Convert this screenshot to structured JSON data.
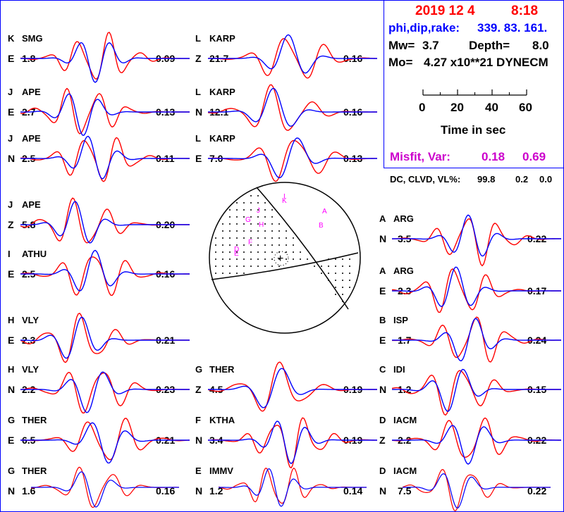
{
  "colors": {
    "observed": "#ff0000",
    "synthetic": "#0000ff",
    "frame": "#0000ff",
    "polarity": "#ff00ff"
  },
  "header": {
    "date": "2019 12  4",
    "time": "8:18",
    "angles_label": "phi,dip,rake:",
    "angles_value": "339. 83.  161.",
    "mw_label": "Mw=",
    "mw_value": "3.7",
    "depth_label": "Depth=",
    "depth_value": "8.0",
    "mo_label": "Mo=",
    "mo_value": "4.27 x10**21 DYNECM",
    "time_ticks": [
      "0",
      "20",
      "40",
      "60"
    ],
    "time_axis_label": "Time  in sec",
    "misfit_label": "Misfit, Var:",
    "misfit_value": "0.18",
    "var_value": "0.69",
    "dc_label": "DC, CLVD, VL%:",
    "dc_value": "99.8",
    "clvd_value": "0.2",
    "vl_value": "0.0"
  },
  "focal_mechanism": {
    "strike_deg": 339,
    "dip_deg": 83,
    "rake_deg": 161,
    "station_marks": [
      "I",
      "K",
      "A",
      "B",
      "J",
      "G",
      "H",
      "F",
      "D",
      "E"
    ],
    "center_mark": "+"
  },
  "chart_data": [
    {
      "type": "line",
      "letter": "K",
      "station": "SMG",
      "component": "E",
      "distance": "1.8",
      "correlation": "0.09",
      "time_axis_sec": [
        0,
        60
      ]
    },
    {
      "type": "line",
      "letter": "L",
      "station": "KARP",
      "component": "Z",
      "distance": "21.7",
      "correlation": "0.16",
      "time_axis_sec": [
        0,
        60
      ]
    },
    {
      "type": "line",
      "letter": "J",
      "station": "APE",
      "component": "E",
      "distance": "2.7",
      "correlation": "0.13",
      "time_axis_sec": [
        0,
        60
      ]
    },
    {
      "type": "line",
      "letter": "L",
      "station": "KARP",
      "component": "N",
      "distance": "12.1",
      "correlation": "0.16",
      "time_axis_sec": [
        0,
        60
      ]
    },
    {
      "type": "line",
      "letter": "J",
      "station": "APE",
      "component": "N",
      "distance": "2.5",
      "correlation": "0.11",
      "time_axis_sec": [
        0,
        60
      ]
    },
    {
      "type": "line",
      "letter": "L",
      "station": "KARP",
      "component": "E",
      "distance": "7.0",
      "correlation": "0.13",
      "time_axis_sec": [
        0,
        60
      ]
    },
    {
      "type": "line",
      "letter": "J",
      "station": "APE",
      "component": "Z",
      "distance": "5.8",
      "correlation": "0.20",
      "time_axis_sec": [
        0,
        60
      ]
    },
    {
      "type": "line",
      "letter": "I",
      "station": "ATHU",
      "component": "E",
      "distance": "2.5",
      "correlation": "0.16",
      "time_axis_sec": [
        0,
        60
      ]
    },
    {
      "type": "line",
      "letter": "A",
      "station": "ARG",
      "component": "N",
      "distance": "3.5",
      "correlation": "0.22",
      "time_axis_sec": [
        0,
        60
      ]
    },
    {
      "type": "line",
      "letter": "A",
      "station": "ARG",
      "component": "E",
      "distance": "2.3",
      "correlation": "0.17",
      "time_axis_sec": [
        0,
        60
      ]
    },
    {
      "type": "line",
      "letter": "H",
      "station": "VLY",
      "component": "E",
      "distance": "2.3",
      "correlation": "0.21",
      "time_axis_sec": [
        0,
        60
      ]
    },
    {
      "type": "line",
      "letter": "B",
      "station": "ISP",
      "component": "E",
      "distance": "1.7",
      "correlation": "0.24",
      "time_axis_sec": [
        0,
        60
      ]
    },
    {
      "type": "line",
      "letter": "H",
      "station": "VLY",
      "component": "N",
      "distance": "2.2",
      "correlation": "0.23",
      "time_axis_sec": [
        0,
        60
      ]
    },
    {
      "type": "line",
      "letter": "G",
      "station": "THER",
      "component": "Z",
      "distance": "4.5",
      "correlation": "0.19",
      "time_axis_sec": [
        0,
        60
      ]
    },
    {
      "type": "line",
      "letter": "C",
      "station": "IDI",
      "component": "N",
      "distance": "1.2",
      "correlation": "0.15",
      "time_axis_sec": [
        0,
        60
      ]
    },
    {
      "type": "line",
      "letter": "G",
      "station": "THER",
      "component": "E",
      "distance": "6.5",
      "correlation": "0.21",
      "time_axis_sec": [
        0,
        60
      ]
    },
    {
      "type": "line",
      "letter": "F",
      "station": "KTHA",
      "component": "N",
      "distance": "3.4",
      "correlation": "0.19",
      "time_axis_sec": [
        0,
        60
      ]
    },
    {
      "type": "line",
      "letter": "D",
      "station": "IACM",
      "component": "Z",
      "distance": "2.2",
      "correlation": "0.22",
      "time_axis_sec": [
        0,
        60
      ]
    },
    {
      "type": "line",
      "letter": "G",
      "station": "THER",
      "component": "N",
      "distance": "1.6",
      "correlation": "0.16",
      "time_axis_sec": [
        0,
        60
      ]
    },
    {
      "type": "line",
      "letter": "E",
      "station": "IMMV",
      "component": "N",
      "distance": "1.2",
      "correlation": "0.14",
      "time_axis_sec": [
        0,
        60
      ]
    },
    {
      "type": "line",
      "letter": "D",
      "station": "IACM",
      "component": "N",
      "distance": "7.5",
      "correlation": "0.22",
      "time_axis_sec": [
        0,
        60
      ]
    }
  ]
}
